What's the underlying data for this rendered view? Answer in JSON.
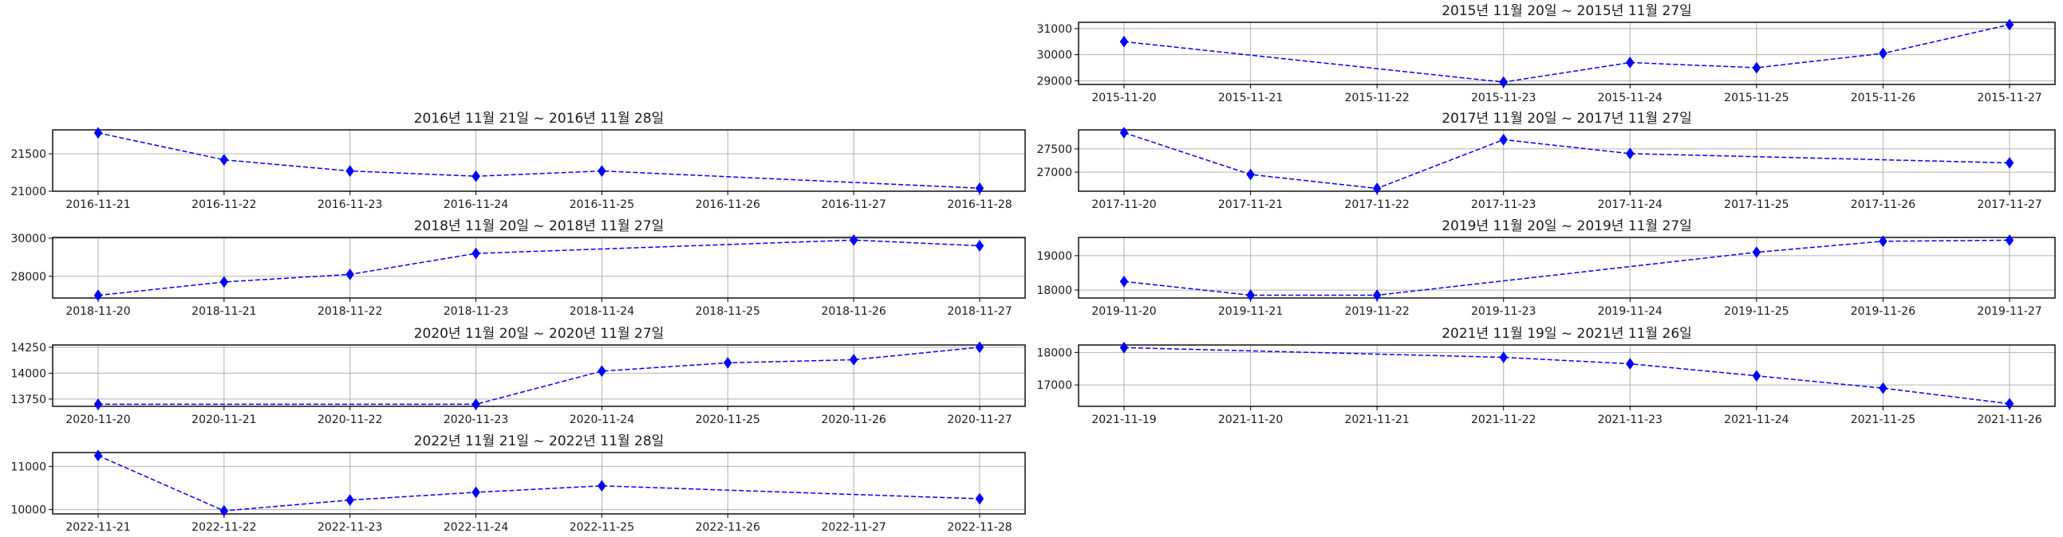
{
  "colors": {
    "series": "#0000ff",
    "grid": "#b0b0b0",
    "frame": "#000000"
  },
  "chart_data": [
    {
      "type": "line",
      "title": "2015년 11월 20일 ~ 2015년 11월 27일",
      "x": [
        "2015-11-20",
        "2015-11-21",
        "2015-11-22",
        "2015-11-23",
        "2015-11-24",
        "2015-11-25",
        "2015-11-26",
        "2015-11-27"
      ],
      "points": [
        [
          "2015-11-20",
          30500
        ],
        [
          "2015-11-23",
          28950
        ],
        [
          "2015-11-24",
          29700
        ],
        [
          "2015-11-25",
          29500
        ],
        [
          "2015-11-26",
          30050
        ],
        [
          "2015-11-27",
          31150
        ]
      ],
      "ylim": [
        28860,
        31240
      ],
      "yticks": [
        29000,
        30000,
        31000
      ],
      "grid": true,
      "marker": "diamond",
      "linestyle": "dashed"
    },
    {
      "type": "line",
      "title": "2016년 11월 21일 ~ 2016년 11월 28일",
      "x": [
        "2016-11-21",
        "2016-11-22",
        "2016-11-23",
        "2016-11-24",
        "2016-11-25",
        "2016-11-26",
        "2016-11-27",
        "2016-11-28"
      ],
      "points": [
        [
          "2016-11-21",
          21780
        ],
        [
          "2016-11-22",
          21420
        ],
        [
          "2016-11-23",
          21270
        ],
        [
          "2016-11-24",
          21200
        ],
        [
          "2016-11-25",
          21270
        ],
        [
          "2016-11-28",
          21040
        ]
      ],
      "ylim": [
        21000,
        21820
      ],
      "yticks": [
        21000,
        21500
      ],
      "grid": true,
      "marker": "diamond",
      "linestyle": "dashed"
    },
    {
      "type": "line",
      "title": "2017년 11월 20일 ~ 2017년 11월 27일",
      "x": [
        "2017-11-20",
        "2017-11-21",
        "2017-11-22",
        "2017-11-23",
        "2017-11-24",
        "2017-11-25",
        "2017-11-26",
        "2017-11-27"
      ],
      "points": [
        [
          "2017-11-20",
          27850
        ],
        [
          "2017-11-21",
          26950
        ],
        [
          "2017-11-22",
          26650
        ],
        [
          "2017-11-23",
          27700
        ],
        [
          "2017-11-24",
          27400
        ],
        [
          "2017-11-27",
          27200
        ]
      ],
      "ylim": [
        26590,
        27910
      ],
      "yticks": [
        27000,
        27500
      ],
      "grid": true,
      "marker": "diamond",
      "linestyle": "dashed"
    },
    {
      "type": "line",
      "title": "2018년 11월 20일 ~ 2018년 11월 27일",
      "x": [
        "2018-11-20",
        "2018-11-21",
        "2018-11-22",
        "2018-11-23",
        "2018-11-24",
        "2018-11-25",
        "2018-11-26",
        "2018-11-27"
      ],
      "points": [
        [
          "2018-11-20",
          27000
        ],
        [
          "2018-11-21",
          27700
        ],
        [
          "2018-11-22",
          28100
        ],
        [
          "2018-11-23",
          29200
        ],
        [
          "2018-11-26",
          29900
        ],
        [
          "2018-11-27",
          29600
        ]
      ],
      "ylim": [
        26860,
        30040
      ],
      "yticks": [
        28000,
        30000
      ],
      "grid": true,
      "marker": "diamond",
      "linestyle": "dashed"
    },
    {
      "type": "line",
      "title": "2019년 11월 20일 ~ 2019년 11월 27일",
      "x": [
        "2019-11-20",
        "2019-11-21",
        "2019-11-22",
        "2019-11-23",
        "2019-11-24",
        "2019-11-25",
        "2019-11-26",
        "2019-11-27"
      ],
      "points": [
        [
          "2019-11-20",
          18250
        ],
        [
          "2019-11-21",
          17850
        ],
        [
          "2019-11-22",
          17850
        ],
        [
          "2019-11-25",
          19100
        ],
        [
          "2019-11-26",
          19420
        ],
        [
          "2019-11-27",
          19450
        ]
      ],
      "ylim": [
        17770,
        19530
      ],
      "yticks": [
        18000,
        19000
      ],
      "grid": true,
      "marker": "diamond",
      "linestyle": "dashed"
    },
    {
      "type": "line",
      "title": "2020년 11월 20일 ~ 2020년 11월 27일",
      "x": [
        "2020-11-20",
        "2020-11-21",
        "2020-11-22",
        "2020-11-23",
        "2020-11-24",
        "2020-11-25",
        "2020-11-26",
        "2020-11-27"
      ],
      "points": [
        [
          "2020-11-20",
          13700
        ],
        [
          "2020-11-23",
          13700
        ],
        [
          "2020-11-24",
          14020
        ],
        [
          "2020-11-25",
          14100
        ],
        [
          "2020-11-26",
          14130
        ],
        [
          "2020-11-27",
          14250
        ]
      ],
      "ylim": [
        13680,
        14272
      ],
      "yticks": [
        13750,
        14000,
        14250
      ],
      "grid": true,
      "marker": "diamond",
      "linestyle": "dashed"
    },
    {
      "type": "line",
      "title": "2021년 11월 19일 ~ 2021년 11월 26일",
      "x": [
        "2021-11-19",
        "2021-11-20",
        "2021-11-21",
        "2021-11-22",
        "2021-11-23",
        "2021-11-24",
        "2021-11-25",
        "2021-11-26"
      ],
      "points": [
        [
          "2021-11-19",
          18150
        ],
        [
          "2021-11-22",
          17850
        ],
        [
          "2021-11-23",
          17650
        ],
        [
          "2021-11-24",
          17280
        ],
        [
          "2021-11-25",
          16900
        ],
        [
          "2021-11-26",
          16420
        ]
      ],
      "ylim": [
        16340,
        18230
      ],
      "yticks": [
        17000,
        18000
      ],
      "grid": true,
      "marker": "diamond",
      "linestyle": "dashed"
    },
    {
      "type": "line",
      "title": "2022년 11월 21일 ~ 2022년 11월 28일",
      "x": [
        "2022-11-21",
        "2022-11-22",
        "2022-11-23",
        "2022-11-24",
        "2022-11-25",
        "2022-11-26",
        "2022-11-27",
        "2022-11-28"
      ],
      "points": [
        [
          "2022-11-21",
          11250
        ],
        [
          "2022-11-22",
          9970
        ],
        [
          "2022-11-23",
          10220
        ],
        [
          "2022-11-24",
          10400
        ],
        [
          "2022-11-25",
          10550
        ],
        [
          "2022-11-28",
          10250
        ]
      ],
      "ylim": [
        9900,
        11320
      ],
      "yticks": [
        10000,
        11000
      ],
      "grid": true,
      "marker": "diamond",
      "linestyle": "dashed"
    }
  ]
}
